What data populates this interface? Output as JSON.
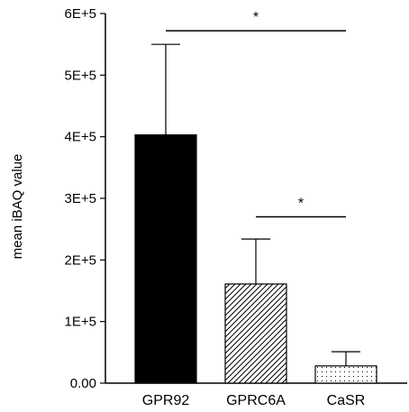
{
  "chart_data": {
    "type": "bar",
    "title": "",
    "xlabel": "",
    "ylabel": "mean iBAQ value",
    "ylim": [
      0,
      600000
    ],
    "yticks": [
      {
        "value": 0,
        "label": "0.00"
      },
      {
        "value": 100000,
        "label": "1E+5"
      },
      {
        "value": 200000,
        "label": "2E+5"
      },
      {
        "value": 300000,
        "label": "3E+5"
      },
      {
        "value": 400000,
        "label": "4E+5"
      },
      {
        "value": 500000,
        "label": "5E+5"
      },
      {
        "value": 600000,
        "label": "6E+5"
      }
    ],
    "categories": [
      "GPR92",
      "GPRC6A",
      "CaSR"
    ],
    "values": [
      403000,
      161000,
      28000
    ],
    "error_upper": [
      550000,
      234000,
      51000
    ],
    "fills": [
      "solid-black",
      "diagonal-hatch",
      "dotted"
    ],
    "bar_color": "#000000",
    "grid": false,
    "legend": "none",
    "significance": [
      {
        "from": "GPR92",
        "to": "CaSR",
        "label": "*",
        "y": 572000
      },
      {
        "from": "GPRC6A",
        "to": "CaSR",
        "label": "*",
        "y": 270000
      }
    ]
  }
}
